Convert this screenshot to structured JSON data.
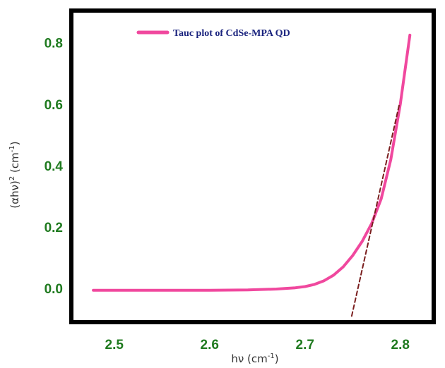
{
  "chart_data": {
    "type": "line",
    "title": "",
    "xlabel": {
      "base": "hν (cm",
      "sup": "-1",
      "tail": ")"
    },
    "ylabel": {
      "base": "(αhν)",
      "sup1": "2",
      "mid": " (cm",
      "sup2": "-1",
      "tail": ")"
    },
    "xlim": [
      2.455,
      2.835
    ],
    "ylim": [
      -0.11,
      0.905
    ],
    "x_ticks": [
      {
        "value": 2.5,
        "label": "2.5"
      },
      {
        "value": 2.6,
        "label": "2.6"
      },
      {
        "value": 2.7,
        "label": "2.7"
      },
      {
        "value": 2.8,
        "label": "2.8"
      }
    ],
    "y_ticks": [
      {
        "value": 0.0,
        "label": "0.0"
      },
      {
        "value": 0.2,
        "label": "0.2"
      },
      {
        "value": 0.4,
        "label": "0.4"
      },
      {
        "value": 0.6,
        "label": "0.6"
      },
      {
        "value": 0.8,
        "label": "0.8"
      }
    ],
    "grid": false,
    "legend_position": "top-left",
    "series": [
      {
        "name": "Tauc plot of CdSe-MPA QD",
        "color": "#f0489e",
        "style": "solid",
        "x": [
          2.478,
          2.5,
          2.55,
          2.6,
          2.64,
          2.67,
          2.69,
          2.7,
          2.71,
          2.72,
          2.73,
          2.74,
          2.75,
          2.76,
          2.77,
          2.78,
          2.79,
          2.8,
          2.81
        ],
        "y": [
          -0.006,
          -0.006,
          -0.006,
          -0.006,
          -0.005,
          -0.002,
          0.002,
          0.006,
          0.013,
          0.025,
          0.043,
          0.07,
          0.107,
          0.153,
          0.212,
          0.292,
          0.42,
          0.6,
          0.825
        ]
      },
      {
        "name": "",
        "color": "#7a1e1e",
        "style": "dashed",
        "x": [
          2.749,
          2.799
        ],
        "y": [
          -0.09,
          0.6
        ]
      }
    ]
  }
}
